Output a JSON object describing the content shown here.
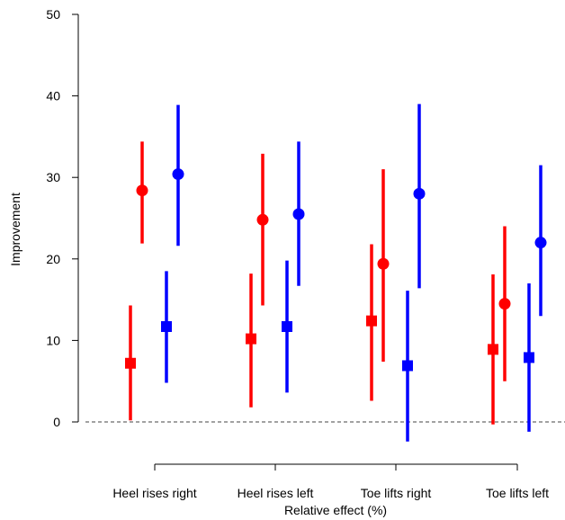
{
  "chart_data": {
    "type": "scatter",
    "title": "",
    "xlabel": "Relative effect (%)",
    "ylabel": "Improvement",
    "ylim": [
      -6,
      50
    ],
    "yticks": [
      0,
      10,
      20,
      30,
      40,
      50
    ],
    "categories": [
      "Heel rises right",
      "Heel rises left",
      "Toe lifts right",
      "Toe lifts left"
    ],
    "reference_line": {
      "y": 0,
      "style": "dashed"
    },
    "grid": false,
    "legend": "none",
    "series": [
      {
        "color": "#ff0000",
        "marker": "square",
        "points": [
          {
            "category": "Heel rises right",
            "value": 7.2,
            "lower": 0.2,
            "upper": 14.3
          },
          {
            "category": "Heel rises left",
            "value": 10.2,
            "lower": 1.8,
            "upper": 18.2
          },
          {
            "category": "Toe lifts right",
            "value": 12.4,
            "lower": 2.6,
            "upper": 21.8
          },
          {
            "category": "Toe lifts left",
            "value": 8.9,
            "lower": -0.3,
            "upper": 18.1
          }
        ]
      },
      {
        "color": "#ff0000",
        "marker": "circle",
        "points": [
          {
            "category": "Heel rises right",
            "value": 28.4,
            "lower": 21.9,
            "upper": 34.4
          },
          {
            "category": "Heel rises left",
            "value": 24.8,
            "lower": 14.3,
            "upper": 32.9
          },
          {
            "category": "Toe lifts right",
            "value": 19.4,
            "lower": 7.4,
            "upper": 31.0
          },
          {
            "category": "Toe lifts left",
            "value": 14.5,
            "lower": 5.0,
            "upper": 24.0
          }
        ]
      },
      {
        "color": "#0000ff",
        "marker": "square",
        "points": [
          {
            "category": "Heel rises right",
            "value": 11.7,
            "lower": 4.8,
            "upper": 18.5
          },
          {
            "category": "Heel rises left",
            "value": 11.7,
            "lower": 3.6,
            "upper": 19.8
          },
          {
            "category": "Toe lifts right",
            "value": 6.9,
            "lower": -2.4,
            "upper": 16.1
          },
          {
            "category": "Toe lifts left",
            "value": 7.9,
            "lower": -1.2,
            "upper": 17.0
          }
        ]
      },
      {
        "color": "#0000ff",
        "marker": "circle",
        "points": [
          {
            "category": "Heel rises right",
            "value": 30.4,
            "lower": 21.6,
            "upper": 38.9
          },
          {
            "category": "Heel rises left",
            "value": 25.5,
            "lower": 16.7,
            "upper": 34.4
          },
          {
            "category": "Toe lifts right",
            "value": 28.0,
            "lower": 16.4,
            "upper": 39.0
          },
          {
            "category": "Toe lifts left",
            "value": 22.0,
            "lower": 13.0,
            "upper": 31.5
          }
        ]
      }
    ]
  }
}
